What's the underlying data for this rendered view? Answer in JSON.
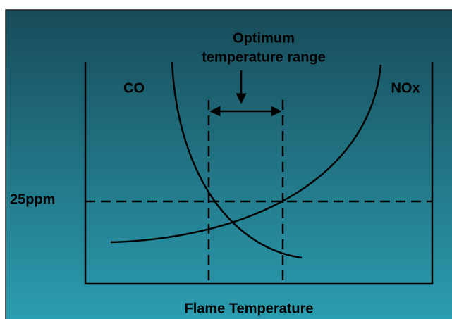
{
  "annotation": {
    "lines": [
      "Optimum",
      "temperature range"
    ]
  },
  "curves": {
    "co": "CO",
    "nox": "NOx"
  },
  "threshold": "25ppm",
  "x_axis": {
    "label": "Flame Temperature"
  }
}
